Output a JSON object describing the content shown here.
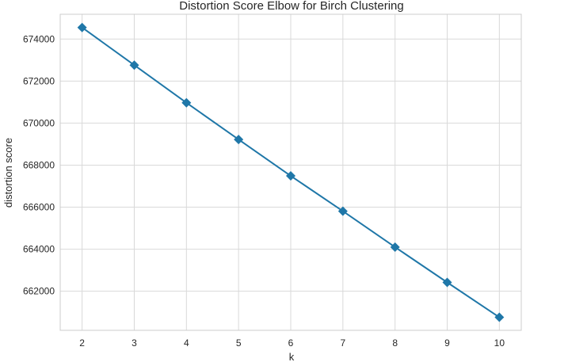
{
  "chart_data": {
    "type": "line",
    "title": "Distortion Score Elbow for Birch Clustering",
    "xlabel": "k",
    "ylabel": "distortion score",
    "x": [
      2,
      3,
      4,
      5,
      6,
      7,
      8,
      9,
      10
    ],
    "series": [
      {
        "values": [
          674550,
          672760,
          670970,
          669220,
          667490,
          665810,
          664100,
          662420,
          660760
        ]
      }
    ],
    "x_ticks": [
      2,
      3,
      4,
      5,
      6,
      7,
      8,
      9,
      10
    ],
    "y_ticks": [
      662000,
      664000,
      666000,
      668000,
      670000,
      672000,
      674000
    ],
    "xlim": [
      1.58,
      10.42
    ],
    "ylim": [
      660140,
      675180
    ],
    "grid": true,
    "line_color": "#1f77a8",
    "marker": "diamond"
  }
}
